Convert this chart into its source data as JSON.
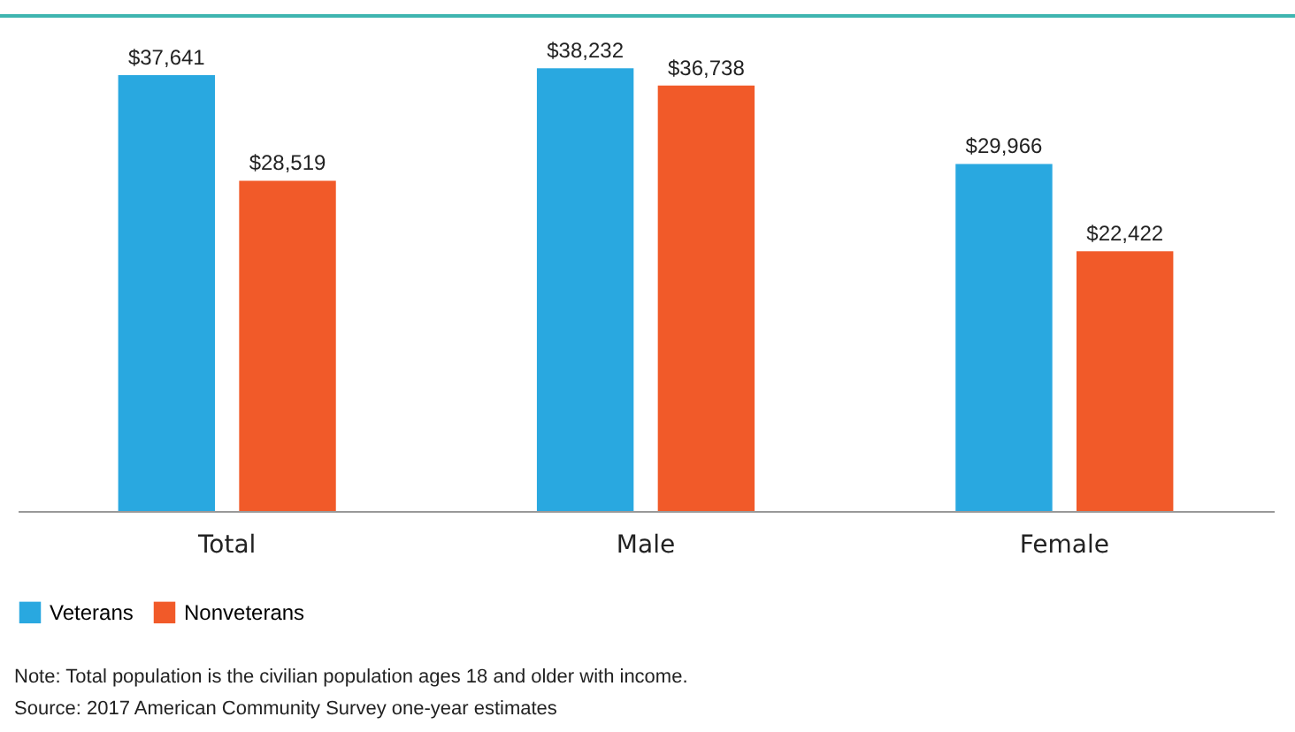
{
  "chart_data": {
    "type": "bar",
    "categories": [
      "Total",
      "Male",
      "Female"
    ],
    "series": [
      {
        "name": "Veterans",
        "color": "#29a8e0",
        "values": [
          37641,
          38232,
          29966
        ],
        "value_labels": [
          "$37,641",
          "$38,232",
          "$29,966"
        ]
      },
      {
        "name": "Nonveterans",
        "color": "#f15a29",
        "values": [
          28519,
          36738,
          22422
        ],
        "value_labels": [
          "$28,519",
          "$36,738",
          "$22,422"
        ]
      }
    ],
    "legend": "bottom",
    "grid": false,
    "annotations": [
      "Note: Total population is the civilian population ages 18 and older with income.",
      "Source: 2017 American Community Survey one-year estimates"
    ]
  }
}
